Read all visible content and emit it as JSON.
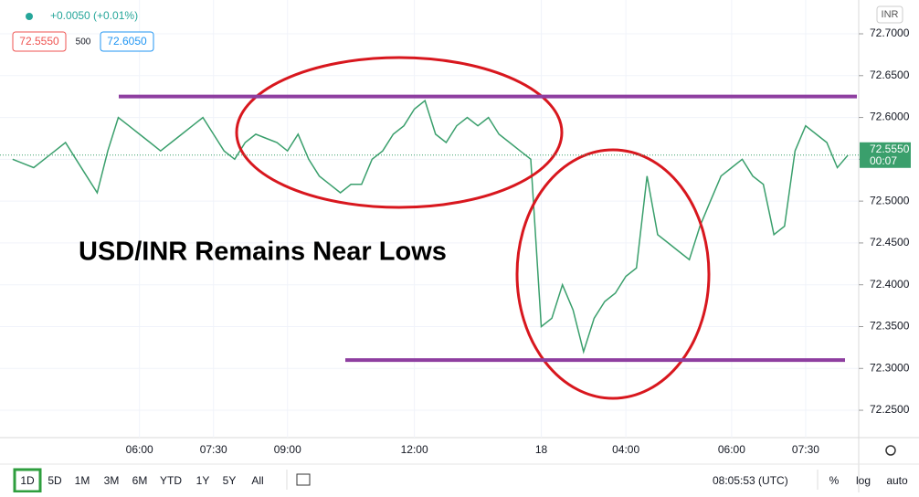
{
  "chart_data": {
    "type": "line",
    "annotation": "USD/INR Remains Near Lows",
    "categories": [
      null,
      null,
      null,
      null,
      null,
      null,
      null,
      null,
      null,
      null,
      null,
      null,
      "06:00",
      null,
      null,
      null,
      null,
      null,
      null,
      "07:30",
      null,
      null,
      null,
      null,
      null,
      null,
      "09:00",
      null,
      null,
      null,
      null,
      null,
      null,
      null,
      null,
      null,
      null,
      null,
      "12:00",
      null,
      null,
      null,
      null,
      null,
      null,
      null,
      null,
      null,
      null,
      null,
      "18",
      null,
      null,
      null,
      null,
      null,
      null,
      null,
      "04:00",
      null,
      null,
      null,
      null,
      null,
      null,
      null,
      null,
      null,
      "06:00",
      null,
      null,
      null,
      null,
      null,
      null,
      "07:30",
      null,
      null,
      null,
      null
    ],
    "series": [
      {
        "name": "USD/INR",
        "color": "#3a9f6c",
        "values": [
          72.55,
          72.545,
          72.54,
          72.55,
          72.56,
          72.57,
          72.55,
          72.53,
          72.51,
          72.56,
          72.6,
          72.59,
          72.58,
          72.57,
          72.56,
          72.57,
          72.58,
          72.59,
          72.6,
          72.58,
          72.56,
          72.55,
          72.57,
          72.58,
          72.575,
          72.57,
          72.56,
          72.58,
          72.55,
          72.53,
          72.52,
          72.51,
          72.52,
          72.52,
          72.55,
          72.56,
          72.58,
          72.59,
          72.61,
          72.62,
          72.58,
          72.57,
          72.59,
          72.6,
          72.59,
          72.6,
          72.58,
          72.57,
          72.56,
          72.55,
          72.35,
          72.36,
          72.4,
          72.37,
          72.32,
          72.36,
          72.38,
          72.39,
          72.41,
          72.42,
          72.53,
          72.46,
          72.45,
          72.44,
          72.43,
          72.47,
          72.5,
          72.53,
          72.54,
          72.55,
          72.53,
          72.52,
          72.46,
          72.47,
          72.56,
          72.59,
          72.58,
          72.57,
          72.54,
          72.555
        ]
      }
    ],
    "levels": [
      72.625,
      72.31
    ],
    "level_color": "#8e3ea0",
    "ylim": [
      72.2173,
      72.7404
    ],
    "yticks": [
      {
        "value": 72.25,
        "label": "72.2500"
      },
      {
        "value": 72.3,
        "label": "72.3000"
      },
      {
        "value": 72.35,
        "label": "72.3500"
      },
      {
        "value": 72.4,
        "label": "72.4000"
      },
      {
        "value": 72.45,
        "label": "72.4500"
      },
      {
        "value": 72.5,
        "label": "72.5000"
      },
      {
        "value": 72.55,
        "label": "72.5500"
      },
      {
        "value": 72.6,
        "label": "72.6000"
      },
      {
        "value": 72.65,
        "label": "72.6500"
      },
      {
        "value": 72.7,
        "label": "72.7000"
      }
    ],
    "last_price": {
      "value": 72.555,
      "label": "72.5550",
      "countdown": "00:07"
    },
    "grid": true
  },
  "header": {
    "change": "+0.0050 (+0.01%)",
    "bid": "72.5550",
    "spread": "500",
    "ask": "72.6050",
    "currency": "INR"
  },
  "toolbar": {
    "ranges": [
      "1D",
      "5D",
      "1M",
      "3M",
      "6M",
      "YTD",
      "1Y",
      "5Y",
      "All"
    ],
    "clock": "08:05:53 (UTC)",
    "options": [
      "%",
      "log",
      "auto"
    ]
  }
}
